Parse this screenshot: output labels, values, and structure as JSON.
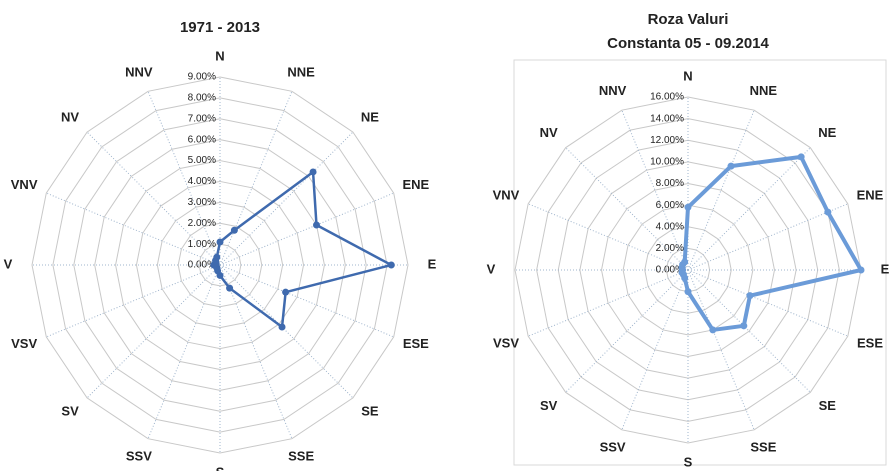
{
  "chart_data": [
    {
      "type": "radar",
      "title": "1971 - 2013",
      "categories": [
        "N",
        "NNE",
        "NE",
        "ENE",
        "E",
        "ESE",
        "SE",
        "SSE",
        "S",
        "SSV",
        "SV",
        "VSV",
        "V",
        "VNV",
        "NV",
        "NNV"
      ],
      "series": [
        {
          "color": "#3f6aae",
          "values": [
            1.1,
            1.8,
            6.3,
            5.0,
            8.2,
            3.4,
            4.2,
            1.2,
            0.5,
            0.3,
            0.2,
            0.2,
            0.3,
            0.2,
            0.3,
            0.4
          ]
        }
      ],
      "ylim": [
        0,
        9
      ],
      "yticks": [
        {
          "value": 0,
          "label": "0.00%"
        },
        {
          "value": 1,
          "label": "1.00%"
        },
        {
          "value": 2,
          "label": "2.00%"
        },
        {
          "value": 3,
          "label": "3.00%"
        },
        {
          "value": 4,
          "label": "4.00%"
        },
        {
          "value": 5,
          "label": "5.00%"
        },
        {
          "value": 6,
          "label": "6.00%"
        },
        {
          "value": 7,
          "label": "7.00%"
        },
        {
          "value": 8,
          "label": "8.00%"
        },
        {
          "value": 9,
          "label": "9.00%"
        }
      ],
      "grid": true
    },
    {
      "type": "radar",
      "title": "Roza Valuri",
      "subtitle": "Constanta  05 - 09.2014",
      "categories": [
        "N",
        "NNE",
        "NE",
        "ENE",
        "E",
        "ESE",
        "SE",
        "SSE",
        "S",
        "SSV",
        "SV",
        "VSV",
        "V",
        "VNV",
        "NV",
        "NNV"
      ],
      "series": [
        {
          "color": "#6b9bd8",
          "values": [
            5.8,
            10.4,
            14.8,
            14.0,
            16.0,
            6.2,
            7.3,
            6.0,
            2.0,
            0.8,
            0.6,
            0.6,
            0.5,
            0.6,
            0.7,
            0.8
          ]
        }
      ],
      "ylim": [
        0,
        16
      ],
      "yticks": [
        {
          "value": 0,
          "label": "0.00%"
        },
        {
          "value": 2,
          "label": "2.00%"
        },
        {
          "value": 4,
          "label": "4.00%"
        },
        {
          "value": 6,
          "label": "6.00%"
        },
        {
          "value": 8,
          "label": "8.00%"
        },
        {
          "value": 10,
          "label": "10.00%"
        },
        {
          "value": 12,
          "label": "12.00%"
        },
        {
          "value": 14,
          "label": "14.00%"
        },
        {
          "value": 16,
          "label": "16.00%"
        }
      ],
      "grid": true
    }
  ]
}
